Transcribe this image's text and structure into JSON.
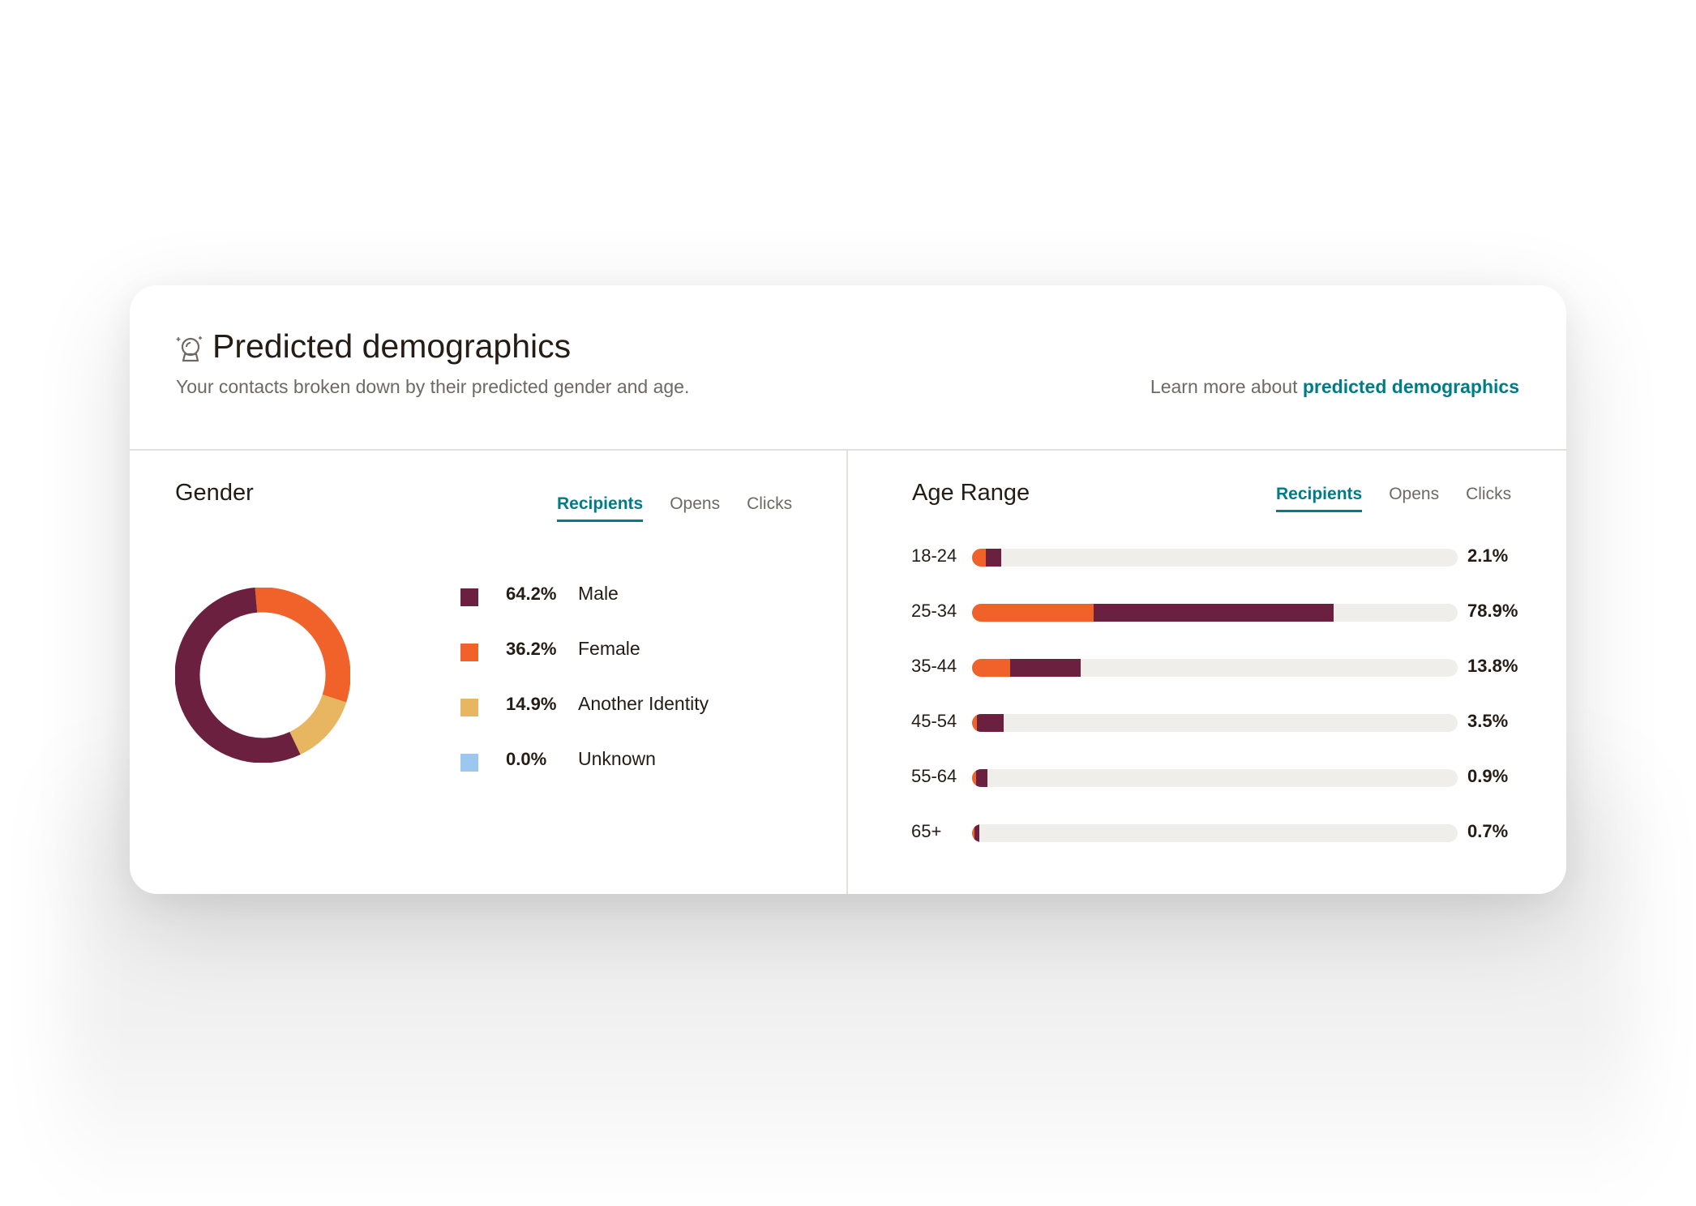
{
  "header": {
    "title": "Predicted demographics",
    "subtitle": "Your contacts broken down by their predicted gender and age.",
    "learn_more_prefix": "Learn more about ",
    "learn_more_link": "predicted demographics"
  },
  "colors": {
    "male": "#6b2040",
    "female": "#f0622a",
    "another_identity": "#e8b660",
    "unknown": "#9cc8ef",
    "accent": "#007c89"
  },
  "gender": {
    "title": "Gender",
    "tabs": [
      {
        "label": "Recipients",
        "active": true
      },
      {
        "label": "Opens",
        "active": false
      },
      {
        "label": "Clicks",
        "active": false
      }
    ],
    "legend": [
      {
        "pct": "64.2%",
        "label": "Male",
        "color": "#6b2040"
      },
      {
        "pct": "36.2%",
        "label": "Female",
        "color": "#f0622a"
      },
      {
        "pct": "14.9%",
        "label": "Another Identity",
        "color": "#e8b660"
      },
      {
        "pct": "0.0%",
        "label": "Unknown",
        "color": "#9cc8ef"
      }
    ]
  },
  "age": {
    "title": "Age Range",
    "tabs": [
      {
        "label": "Recipients",
        "active": true
      },
      {
        "label": "Opens",
        "active": false
      },
      {
        "label": "Clicks",
        "active": false
      }
    ]
  },
  "chart_data": [
    {
      "type": "pie",
      "title": "Gender",
      "categories": [
        "Male",
        "Female",
        "Another Identity",
        "Unknown"
      ],
      "values": [
        64.2,
        36.2,
        14.9,
        0.0
      ],
      "style": "donut"
    },
    {
      "type": "bar",
      "orientation": "horizontal",
      "stacked": true,
      "title": "Age Range",
      "categories": [
        "18-24",
        "25-34",
        "35-44",
        "45-54",
        "55-64",
        "65+"
      ],
      "labels": [
        "2.1%",
        "78.9%",
        "13.8%",
        "3.5%",
        "0.9%",
        "0.7%"
      ],
      "values": [
        2.1,
        78.9,
        13.8,
        3.5,
        0.9,
        0.7
      ],
      "series": [
        {
          "name": "Female",
          "values": [
            3.0,
            26.6,
            8.4,
            1.1,
            0.8,
            0.5
          ]
        },
        {
          "name": "Male",
          "values": [
            3.3,
            52.3,
            15.4,
            5.8,
            2.6,
            1.1
          ]
        }
      ],
      "xlim": [
        0,
        106
      ]
    }
  ]
}
